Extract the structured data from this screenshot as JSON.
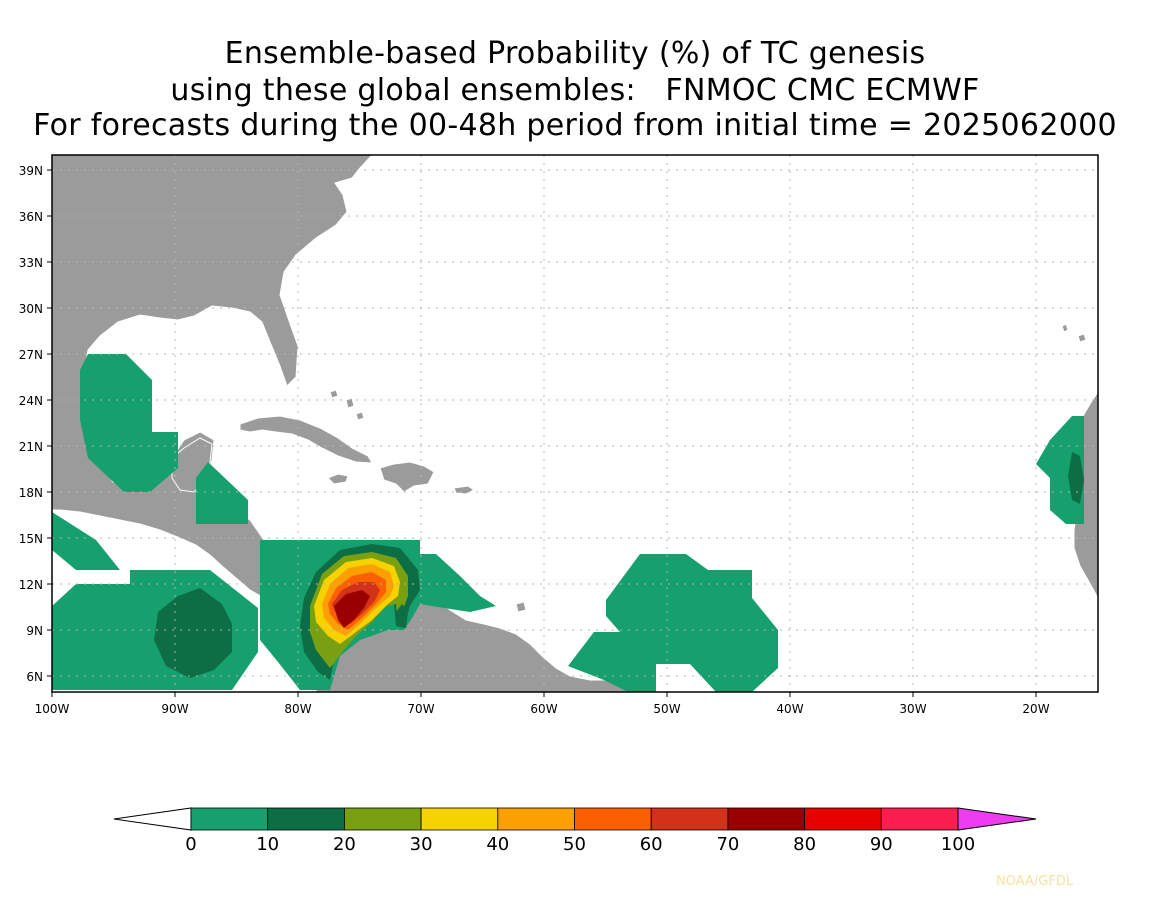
{
  "title": {
    "line1": "Ensemble-based Probability (%) of TC genesis",
    "line2": "using these global ensembles:   FNMOC CMC ECMWF",
    "line3": "For forecasts during the 00-48h period from initial time = 2025062000"
  },
  "axes": {
    "lat_labels": [
      "39N",
      "36N",
      "33N",
      "30N",
      "27N",
      "24N",
      "21N",
      "18N",
      "15N",
      "12N",
      "9N",
      "6N"
    ],
    "lon_labels": [
      "100W",
      "90W",
      "80W",
      "70W",
      "60W",
      "50W",
      "40W",
      "30W",
      "20W"
    ],
    "gridlines": "dotted",
    "lat_range": [
      "5N",
      "40N"
    ],
    "lon_range": [
      "100W",
      "15W"
    ]
  },
  "colorbar": {
    "labels": [
      "0",
      "10",
      "20",
      "30",
      "40",
      "50",
      "60",
      "70",
      "80",
      "90",
      "100"
    ],
    "colors": [
      "#ffffff",
      "#16a06e",
      "#0d6e45",
      "#78a012",
      "#f5d200",
      "#fba000",
      "#fb6000",
      "#d2321a",
      "#9b0000",
      "#e60000",
      "#fa1e50",
      "#f03cf0"
    ]
  },
  "colors": {
    "land": "#9b9b9b",
    "coast": "#ffffff",
    "ocean": "#ffffff"
  },
  "credit": "NOAA/GFDL"
}
